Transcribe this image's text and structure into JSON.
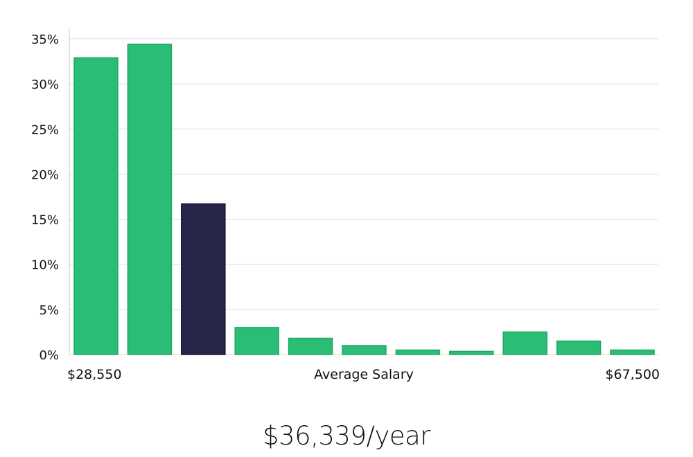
{
  "chart_data": {
    "type": "bar",
    "title": "",
    "xlabel": "Average Salary",
    "ylabel": "",
    "x_min_label": "$28,550",
    "x_max_label": "$67,500",
    "ylim": [
      0,
      35
    ],
    "y_ticks": [
      0,
      5,
      10,
      15,
      20,
      25,
      30,
      35
    ],
    "y_tick_labels": [
      "0%",
      "5%",
      "10%",
      "15%",
      "20%",
      "25%",
      "30%",
      "35%"
    ],
    "grid": true,
    "bins": [
      "bin-1",
      "bin-2",
      "bin-3",
      "bin-4",
      "bin-5",
      "bin-6",
      "bin-7",
      "bin-8",
      "bin-9",
      "bin-10",
      "bin-11"
    ],
    "values": [
      32.9,
      34.4,
      16.7,
      3.0,
      1.8,
      1.0,
      0.5,
      0.35,
      2.5,
      1.5,
      0.5
    ],
    "highlight_index": 2,
    "colors": {
      "bar": "#2bbd75",
      "bar_stroke": "#20a862",
      "highlight": "#28254a",
      "highlight_stroke": "#14122e",
      "grid": "#dddddd",
      "axis": "#cccccc"
    }
  },
  "summary": {
    "salary_text": "$36,339/year"
  }
}
